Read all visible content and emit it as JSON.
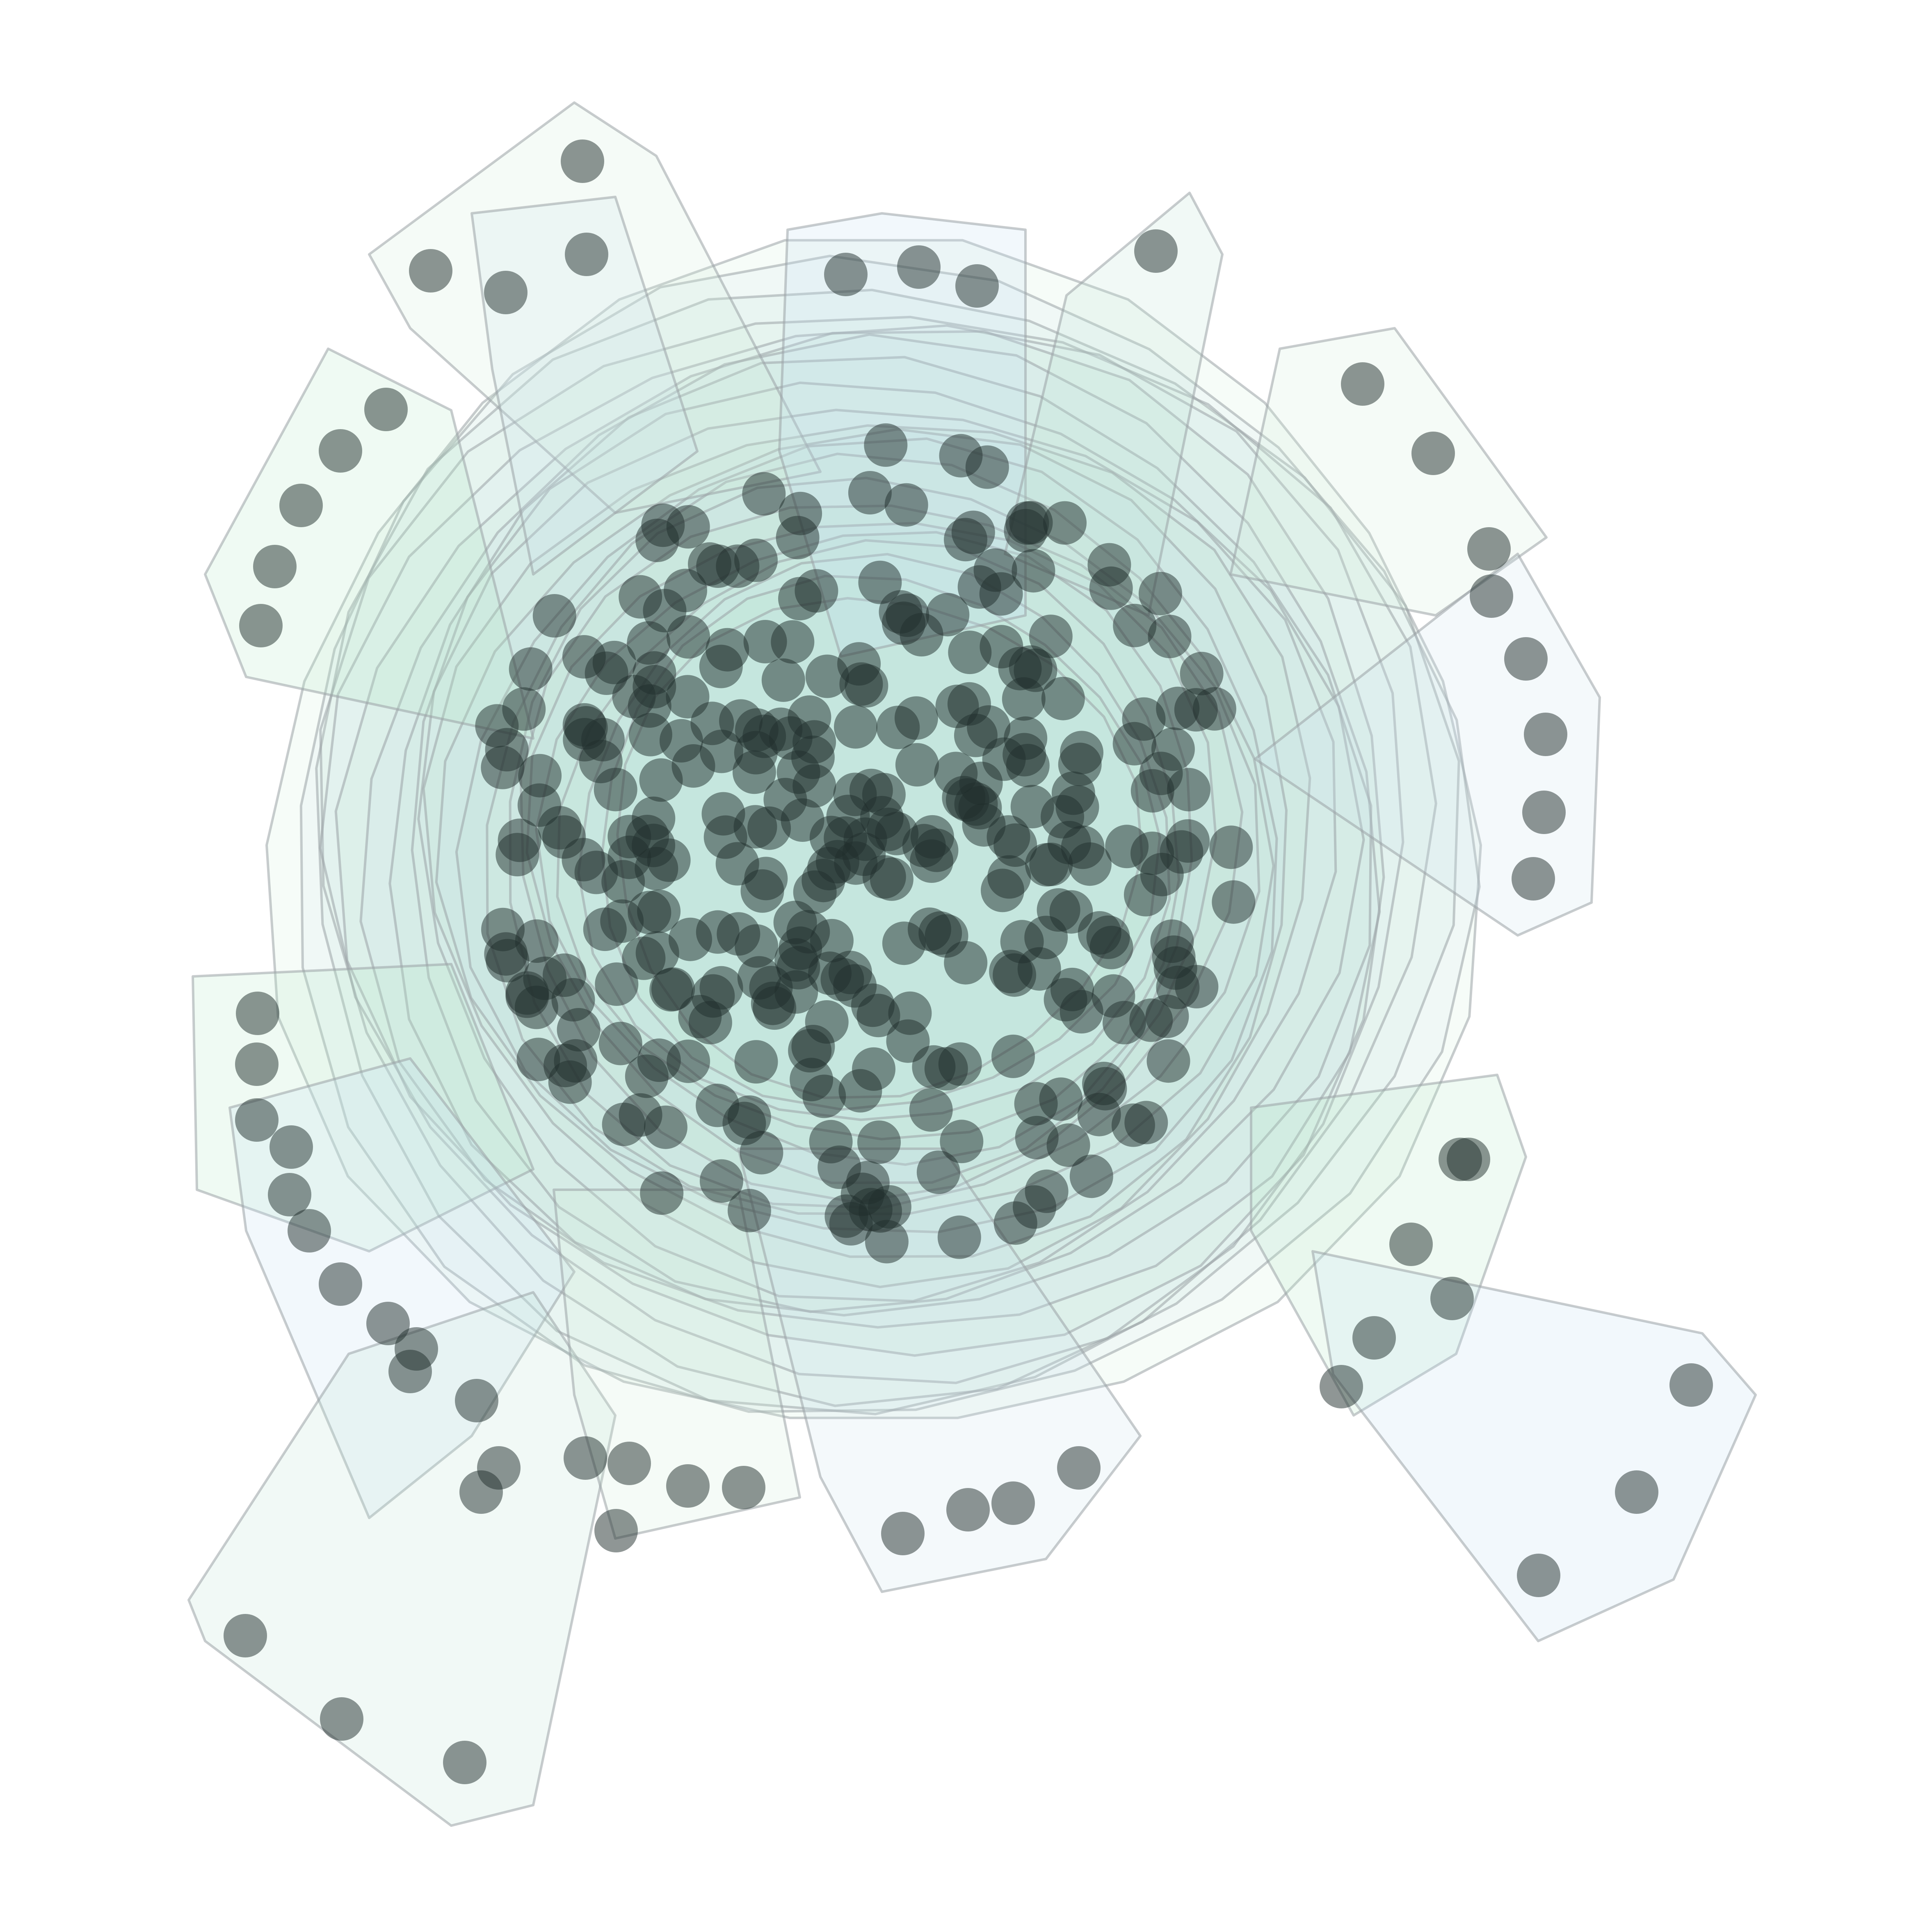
{
  "colors": {
    "background": "#ffffff",
    "hull_fills": [
      "#b8e6c9",
      "#c4dff0",
      "#bfe3d6",
      "#d2ecdb",
      "#cfe3ee"
    ],
    "hull_stroke": "#9aa3a6",
    "node_fill": "#1f2d2b"
  },
  "figure": {
    "kind": "overlapping rounded group hulls around a dense scatter of nodes",
    "labels": [],
    "legend": null,
    "axes": null
  }
}
